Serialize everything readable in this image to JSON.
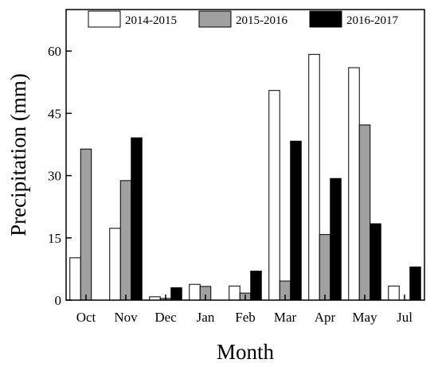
{
  "chart_data": {
    "type": "bar",
    "title": "",
    "xlabel": "Month",
    "ylabel": "Precipitation (mm)",
    "ylim": [
      0,
      70
    ],
    "yticks": [
      0,
      15,
      30,
      45,
      60
    ],
    "categories": [
      "Oct",
      "Nov",
      "Dec",
      "Jan",
      "Feb",
      "Mar",
      "Apr",
      "May",
      "Jul"
    ],
    "series": [
      {
        "name": "2014-2015",
        "color": "#ffffff",
        "values": [
          10.2,
          17.3,
          0.8,
          3.8,
          3.4,
          50.5,
          59.2,
          56.0,
          3.4
        ]
      },
      {
        "name": "2015-2016",
        "color": "#a0a0a0",
        "values": [
          36.4,
          28.8,
          0.4,
          3.3,
          1.7,
          4.6,
          15.8,
          42.2,
          0.0
        ]
      },
      {
        "name": "2016-2017",
        "color": "#000000",
        "values": [
          0.0,
          39.1,
          3.0,
          0.0,
          7.0,
          38.3,
          29.3,
          18.4,
          8.0
        ]
      }
    ],
    "grid": false,
    "legend": "top"
  }
}
